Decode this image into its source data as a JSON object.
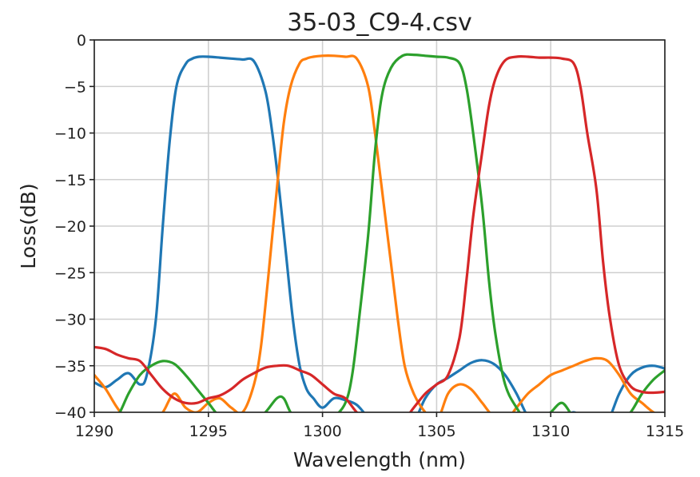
{
  "chart_data": {
    "type": "line",
    "title": "35-03_C9-4.csv",
    "xlabel": "Wavelength (nm)",
    "ylabel": "Loss(dB)",
    "xlim": [
      1290,
      1315
    ],
    "ylim": [
      -40,
      0
    ],
    "xticks": [
      1290,
      1295,
      1300,
      1305,
      1310,
      1315
    ],
    "yticks": [
      0,
      -5,
      -10,
      -15,
      -20,
      -25,
      -30,
      -35,
      -40
    ],
    "xtick_labels": [
      "1290",
      "1295",
      "1300",
      "1305",
      "1310",
      "1315"
    ],
    "ytick_labels": [
      "0",
      "−5",
      "−10",
      "−15",
      "−20",
      "−25",
      "−30",
      "−35",
      "−40"
    ],
    "grid": true,
    "series": [
      {
        "color": "#1f77b4",
        "x": [
          1290.0,
          1290.5,
          1291.0,
          1291.5,
          1292.0,
          1292.3,
          1292.7,
          1293.0,
          1293.3,
          1293.6,
          1294.0,
          1294.3,
          1294.6,
          1295.0,
          1295.5,
          1296.0,
          1296.5,
          1297.0,
          1297.5,
          1297.8,
          1298.1,
          1298.4,
          1298.7,
          1299.0,
          1299.3,
          1299.6,
          1300.0,
          1300.5,
          1301.0,
          1301.5,
          1302.0,
          1302.5,
          1303.0,
          1303.5,
          1304.0,
          1304.5,
          1305.0,
          1305.5,
          1306.0,
          1306.5,
          1307.0,
          1307.5,
          1308.0,
          1308.5,
          1309.0,
          1309.5,
          1310.0,
          1310.5,
          1311.0,
          1311.5,
          1312.0,
          1312.5,
          1313.0,
          1313.5,
          1314.0,
          1314.5,
          1315.0
        ],
        "y": [
          -36.8,
          -37.3,
          -36.5,
          -35.8,
          -37.0,
          -36.0,
          -30.0,
          -20.0,
          -11.0,
          -5.0,
          -2.6,
          -2.0,
          -1.8,
          -1.8,
          -1.9,
          -2.0,
          -2.1,
          -2.3,
          -5.5,
          -10.0,
          -16.0,
          -23.0,
          -30.0,
          -35.0,
          -37.5,
          -38.5,
          -39.5,
          -38.5,
          -38.7,
          -39.2,
          -40.5,
          -41.0,
          -41.0,
          -41.0,
          -41.0,
          -38.5,
          -37.0,
          -36.3,
          -35.5,
          -34.7,
          -34.4,
          -34.8,
          -36.0,
          -38.0,
          -40.5,
          -42.0,
          -42.0,
          -41.0,
          -40.0,
          -41.0,
          -42.0,
          -41.0,
          -38.0,
          -36.0,
          -35.2,
          -35.0,
          -35.3
        ]
      },
      {
        "color": "#ff7f0e",
        "x": [
          1290.0,
          1290.5,
          1291.0,
          1291.5,
          1292.0,
          1292.5,
          1293.0,
          1293.5,
          1294.0,
          1294.5,
          1295.0,
          1295.5,
          1296.0,
          1296.5,
          1297.0,
          1297.3,
          1297.6,
          1298.0,
          1298.3,
          1298.6,
          1299.0,
          1299.3,
          1299.6,
          1300.0,
          1300.5,
          1301.0,
          1301.5,
          1302.0,
          1302.3,
          1302.6,
          1303.0,
          1303.3,
          1303.6,
          1304.0,
          1304.5,
          1305.0,
          1305.5,
          1306.0,
          1306.5,
          1307.0,
          1307.5,
          1308.0,
          1308.5,
          1309.0,
          1309.5,
          1310.0,
          1310.5,
          1311.0,
          1311.5,
          1312.0,
          1312.5,
          1313.0,
          1313.5,
          1314.0,
          1314.5,
          1315.0
        ],
        "y": [
          -36.0,
          -37.5,
          -39.5,
          -41.0,
          -41.0,
          -41.0,
          -40.0,
          -38.0,
          -39.5,
          -40.0,
          -39.0,
          -38.5,
          -39.5,
          -40.0,
          -37.0,
          -33.0,
          -26.0,
          -16.0,
          -9.0,
          -5.0,
          -2.5,
          -2.0,
          -1.8,
          -1.7,
          -1.7,
          -1.8,
          -2.0,
          -5.0,
          -10.0,
          -16.0,
          -24.0,
          -30.0,
          -35.0,
          -38.0,
          -40.0,
          -41.0,
          -38.0,
          -37.0,
          -37.5,
          -39.0,
          -40.5,
          -41.0,
          -39.5,
          -38.0,
          -37.0,
          -36.0,
          -35.5,
          -35.0,
          -34.5,
          -34.2,
          -34.5,
          -36.0,
          -38.0,
          -39.0,
          -40.0,
          -40.5
        ]
      },
      {
        "color": "#2ca02c",
        "x": [
          1290.0,
          1290.5,
          1291.0,
          1291.5,
          1292.0,
          1292.5,
          1293.0,
          1293.5,
          1294.0,
          1294.5,
          1295.0,
          1295.5,
          1296.0,
          1296.5,
          1297.0,
          1297.5,
          1298.0,
          1298.3,
          1298.6,
          1299.0,
          1299.5,
          1300.0,
          1300.5,
          1301.0,
          1301.3,
          1301.6,
          1302.0,
          1302.3,
          1302.6,
          1303.0,
          1303.5,
          1304.0,
          1304.5,
          1305.0,
          1305.5,
          1306.0,
          1306.3,
          1306.6,
          1307.0,
          1307.3,
          1307.6,
          1308.0,
          1308.5,
          1309.0,
          1309.5,
          1310.0,
          1310.5,
          1311.0,
          1311.5,
          1312.0,
          1312.5,
          1313.0,
          1313.5,
          1314.0,
          1314.5,
          1315.0
        ],
        "y": [
          -41.0,
          -41.0,
          -40.5,
          -38.0,
          -36.0,
          -35.0,
          -34.5,
          -34.8,
          -36.0,
          -37.5,
          -39.0,
          -40.5,
          -41.0,
          -41.0,
          -41.0,
          -40.0,
          -38.5,
          -38.5,
          -40.0,
          -41.0,
          -41.0,
          -41.0,
          -40.5,
          -39.0,
          -36.0,
          -30.0,
          -21.0,
          -12.0,
          -6.0,
          -3.0,
          -1.7,
          -1.6,
          -1.7,
          -1.8,
          -1.9,
          -2.5,
          -5.0,
          -10.0,
          -18.0,
          -26.0,
          -32.0,
          -37.0,
          -39.5,
          -41.0,
          -41.0,
          -40.0,
          -39.0,
          -40.5,
          -41.0,
          -41.0,
          -41.0,
          -41.0,
          -40.0,
          -38.0,
          -36.5,
          -35.5
        ]
      },
      {
        "color": "#d62728",
        "x": [
          1290.0,
          1290.5,
          1291.0,
          1291.5,
          1292.0,
          1292.5,
          1293.0,
          1293.5,
          1294.0,
          1294.5,
          1295.0,
          1295.5,
          1296.0,
          1296.5,
          1297.0,
          1297.5,
          1298.0,
          1298.5,
          1299.0,
          1299.5,
          1300.0,
          1300.5,
          1301.0,
          1301.5,
          1302.0,
          1302.5,
          1303.0,
          1303.5,
          1304.0,
          1304.5,
          1305.0,
          1305.5,
          1306.0,
          1306.3,
          1306.6,
          1307.0,
          1307.3,
          1307.6,
          1308.0,
          1308.5,
          1309.0,
          1309.5,
          1310.0,
          1310.5,
          1311.0,
          1311.3,
          1311.6,
          1312.0,
          1312.3,
          1312.6,
          1313.0,
          1313.5,
          1314.0,
          1314.5,
          1315.0
        ],
        "y": [
          -33.0,
          -33.2,
          -33.8,
          -34.2,
          -34.5,
          -36.0,
          -37.5,
          -38.5,
          -39.0,
          -39.0,
          -38.5,
          -38.2,
          -37.5,
          -36.5,
          -35.8,
          -35.2,
          -35.0,
          -35.0,
          -35.5,
          -36.0,
          -37.0,
          -38.0,
          -38.5,
          -40.0,
          -41.0,
          -41.0,
          -41.0,
          -41.0,
          -39.5,
          -38.0,
          -37.0,
          -36.0,
          -32.0,
          -26.0,
          -19.0,
          -12.0,
          -7.0,
          -4.0,
          -2.2,
          -1.8,
          -1.8,
          -1.9,
          -1.9,
          -2.0,
          -2.5,
          -5.0,
          -10.0,
          -16.0,
          -24.0,
          -30.0,
          -35.0,
          -37.2,
          -37.8,
          -37.9,
          -37.8
        ]
      }
    ]
  }
}
